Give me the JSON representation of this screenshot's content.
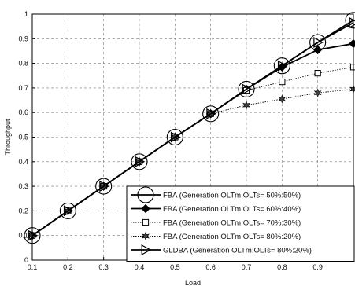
{
  "chart_data": {
    "type": "line",
    "title": "",
    "xlabel": "Load",
    "ylabel": "Throughput",
    "xlim": [
      0.1,
      1.0
    ],
    "ylim": [
      0,
      1
    ],
    "xticks": [
      "0.1",
      "0.2",
      "0.3",
      "0.4",
      "0.5",
      "0.6",
      "0.7",
      "0.8",
      "0.9"
    ],
    "yticks": [
      "0",
      "0.1",
      "0.2",
      "0.3",
      "0.4",
      "0.5",
      "0.6",
      "0.7",
      "0.8",
      "0.9",
      "1"
    ],
    "grid": true,
    "legend_position": "bottom-right",
    "x": [
      0.1,
      0.2,
      0.3,
      0.4,
      0.5,
      0.6,
      0.7,
      0.8,
      0.9,
      1.0
    ],
    "series": [
      {
        "name": "FBA (Generation OLTm:OLTs= 50%:50%)",
        "marker": "circle",
        "line": "solid",
        "values": [
          0.1,
          0.2,
          0.3,
          0.4,
          0.5,
          0.595,
          0.695,
          0.79,
          0.885,
          0.975
        ]
      },
      {
        "name": "FBA (Generation OLTm:OLTs= 60%:40%)",
        "marker": "diamond",
        "line": "solid",
        "values": [
          0.1,
          0.2,
          0.3,
          0.4,
          0.5,
          0.595,
          0.695,
          0.785,
          0.855,
          0.88
        ]
      },
      {
        "name": "FBA (Generation OLTm:OLTs= 70%:30%)",
        "marker": "square",
        "line": "dotted",
        "values": [
          0.1,
          0.2,
          0.3,
          0.4,
          0.5,
          0.595,
          0.69,
          0.725,
          0.76,
          0.785
        ]
      },
      {
        "name": "FBA (Generation OLTm:OLTs= 80%:20%)",
        "marker": "star",
        "line": "dotted",
        "values": [
          0.1,
          0.2,
          0.3,
          0.4,
          0.5,
          0.595,
          0.63,
          0.655,
          0.68,
          0.695
        ]
      },
      {
        "name": "GLDBA (Generation OLTm:OLTs= 80%:20%)",
        "marker": "triangle-right",
        "line": "solid",
        "values": [
          0.1,
          0.2,
          0.3,
          0.4,
          0.5,
          0.595,
          0.695,
          0.79,
          0.885,
          0.965
        ]
      }
    ]
  }
}
